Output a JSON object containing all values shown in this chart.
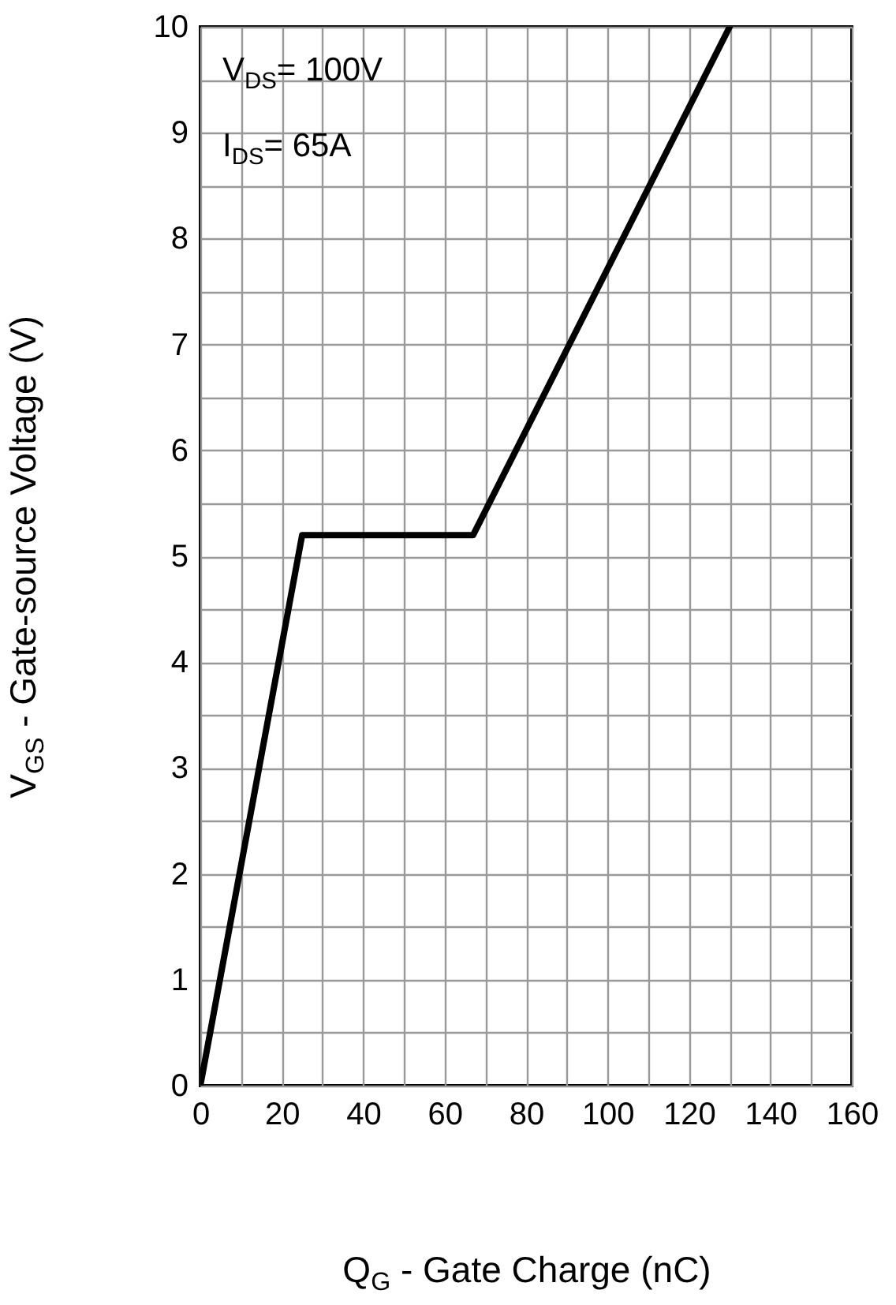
{
  "chart_data": {
    "type": "line",
    "xlabel": "Q$_{G}$ - Gate Charge (nC)",
    "ylabel": "V$_{GS}$ - Gate-source Voltage (V)",
    "annotations": [
      "V$_{DS}$= 100V",
      "I$_{DS}$= 65A"
    ],
    "x": [
      0,
      25,
      67,
      130
    ],
    "series": [
      {
        "color": "#000000",
        "values": [
          0,
          5.2,
          5.2,
          10
        ]
      }
    ],
    "xlim": [
      0,
      160
    ],
    "xticks": [
      0,
      {
        "value": 10,
        "label": null
      },
      20,
      {
        "value": 30,
        "label": null
      },
      40,
      {
        "value": 50,
        "label": null
      },
      60,
      {
        "value": 70,
        "label": null
      },
      80,
      {
        "value": 90,
        "label": null
      },
      100,
      {
        "value": 110,
        "label": null
      },
      120,
      {
        "value": 130,
        "label": null
      },
      140,
      {
        "value": 150,
        "label": null
      },
      160
    ],
    "ylim": [
      0,
      10
    ],
    "yticks": [
      0,
      {
        "value": 0.5,
        "label": null
      },
      1,
      {
        "value": 1.5,
        "label": null
      },
      2,
      {
        "value": 2.5,
        "label": null
      },
      3,
      {
        "value": 3.5,
        "label": null
      },
      4,
      {
        "value": 4.5,
        "label": null
      },
      5,
      {
        "value": 5.5,
        "label": null
      },
      6,
      {
        "value": 6.5,
        "label": null
      },
      7,
      {
        "value": 7.5,
        "label": null
      },
      8,
      {
        "value": 8.5,
        "label": null
      },
      9,
      {
        "value": 9.5,
        "label": null
      },
      10
    ],
    "grid": true
  }
}
